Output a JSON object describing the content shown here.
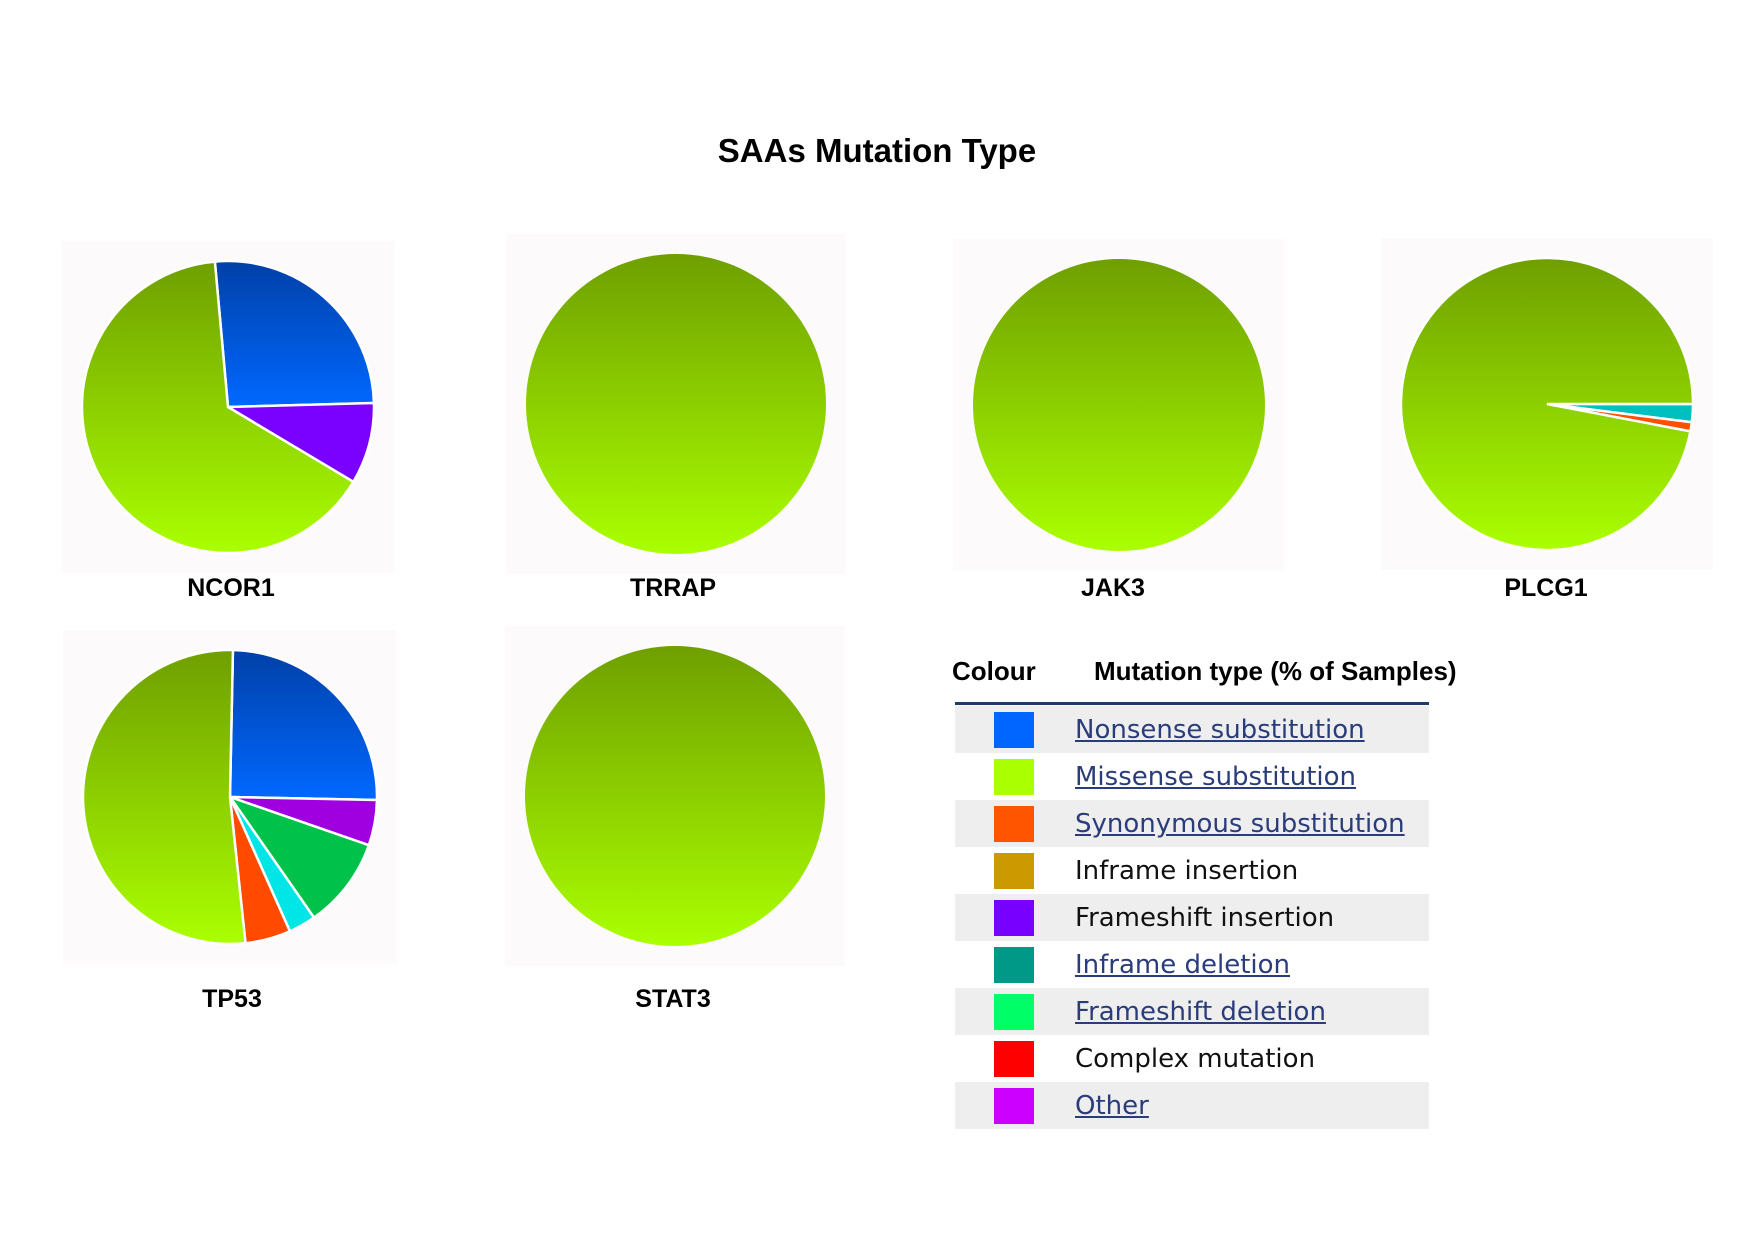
{
  "title": "SAAs Mutation Type",
  "chart_data": {
    "type": "pie",
    "title": "SAAs Mutation Type",
    "pies": [
      {
        "name": "NCOR1",
        "slices": [
          {
            "type": "Nonsense substitution",
            "value": 26,
            "color": "#005cff"
          },
          {
            "type": "Frameshift insertion",
            "value": 9,
            "color": "#7a00ff"
          },
          {
            "type": "Missense substitution",
            "value": 65,
            "color": "#aaff00"
          }
        ]
      },
      {
        "name": "TRRAP",
        "slices": [
          {
            "type": "Missense substitution",
            "value": 100,
            "color": "#aaff00"
          }
        ]
      },
      {
        "name": "JAK3",
        "slices": [
          {
            "type": "Missense substitution",
            "value": 100,
            "color": "#aaff00"
          }
        ]
      },
      {
        "name": "PLCG1",
        "slices": [
          {
            "type": "Inframe deletion",
            "value": 2,
            "color": "#00bfbf"
          },
          {
            "type": "Synonymous substitution",
            "value": 1,
            "color": "#ff5000"
          },
          {
            "type": "Missense substitution",
            "value": 97,
            "color": "#aaff00"
          }
        ]
      },
      {
        "name": "TP53",
        "slices": [
          {
            "type": "Nonsense substitution",
            "value": 25,
            "color": "#005cff"
          },
          {
            "type": "Frameshift insertion",
            "value": 5,
            "color": "#a000e0"
          },
          {
            "type": "Frameshift deletion",
            "value": 10,
            "color": "#00c24a"
          },
          {
            "type": "Inframe deletion",
            "value": 3,
            "color": "#00e5e5"
          },
          {
            "type": "Synonymous substitution",
            "value": 5,
            "color": "#ff4a00"
          },
          {
            "type": "Missense substitution",
            "value": 52,
            "color": "#aaff00"
          }
        ]
      },
      {
        "name": "STAT3",
        "slices": [
          {
            "type": "Missense substitution",
            "value": 100,
            "color": "#aaff00"
          }
        ]
      }
    ]
  },
  "legend": {
    "header_colour": "Colour",
    "header_type": "Mutation type (% of Samples)",
    "items": [
      {
        "label": "Nonsense substitution",
        "color": "#0066ff",
        "link": true
      },
      {
        "label": "Missense substitution",
        "color": "#aaff00",
        "link": true
      },
      {
        "label": "Synonymous substitution",
        "color": "#ff5500",
        "link": true
      },
      {
        "label": "Inframe insertion",
        "color": "#cc9900",
        "link": false
      },
      {
        "label": "Frameshift insertion",
        "color": "#7700ff",
        "link": false
      },
      {
        "label": "Inframe deletion",
        "color": "#009988",
        "link": true
      },
      {
        "label": "Frameshift deletion",
        "color": "#00ff66",
        "link": true
      },
      {
        "label": "Complex mutation",
        "color": "#ff0000",
        "link": false
      },
      {
        "label": "Other",
        "color": "#cc00ff",
        "link": true
      }
    ]
  }
}
